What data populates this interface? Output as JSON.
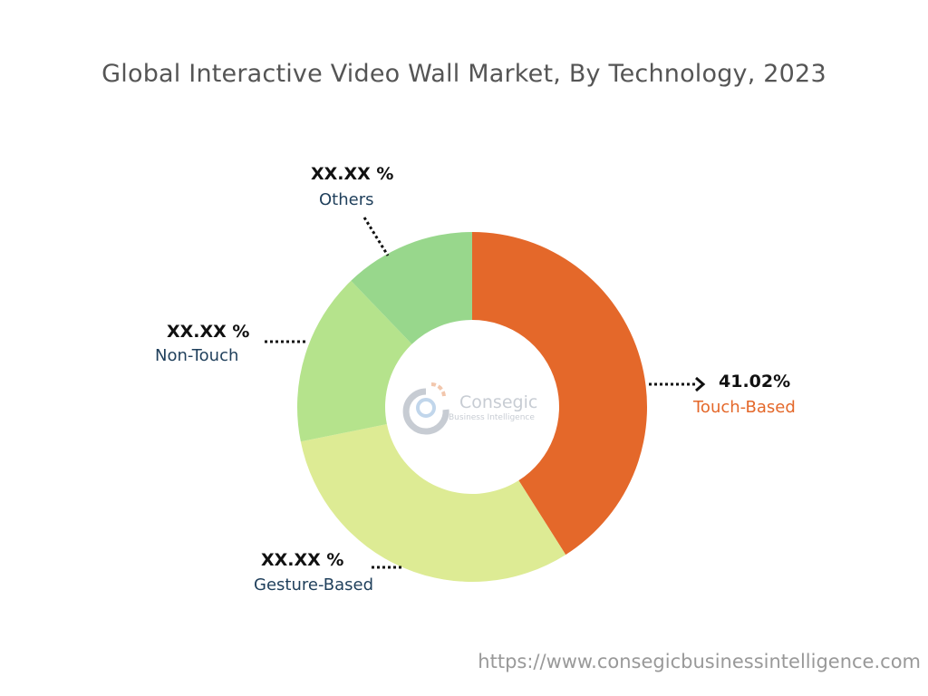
{
  "chart_data": {
    "type": "pie",
    "donut": true,
    "title": "Global Interactive Video Wall Market, By Technology, 2023",
    "slices": [
      {
        "name": "Touch-Based",
        "value": 41.02,
        "label": "41.02%",
        "color": "#E4682A",
        "label_color": "#E4682A"
      },
      {
        "name": "Gesture-Based",
        "value": 30.8,
        "label": "XX.XX %",
        "color": "#DDEB94",
        "label_color": "#1F3F5B"
      },
      {
        "name": "Non-Touch",
        "value": 16.0,
        "label": "XX.XX %",
        "color": "#B5E38C",
        "label_color": "#1F3F5B"
      },
      {
        "name": "Others",
        "value": 12.18,
        "label": "XX.XX %",
        "color": "#98D78C",
        "label_color": "#1F3F5B"
      }
    ]
  },
  "watermark": {
    "brand": "Consegic",
    "tagline": "Business Intelligence"
  },
  "footer_url": "https://www.consegicbusinessintelligence.com"
}
